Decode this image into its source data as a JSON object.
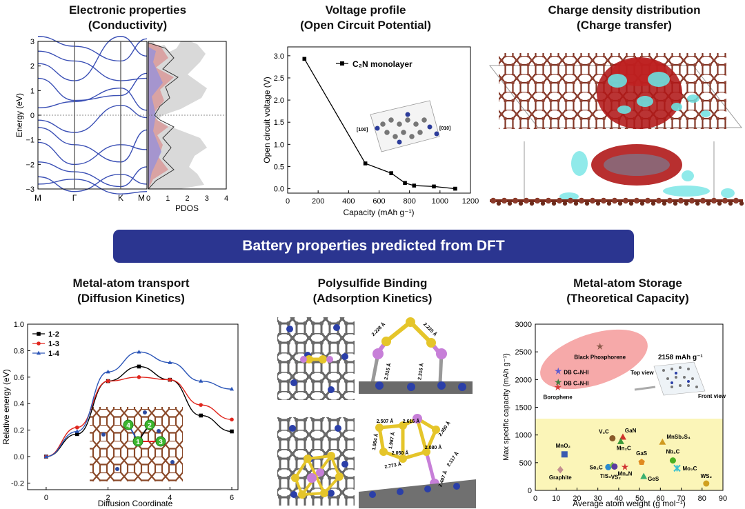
{
  "panels": [
    {
      "title": "Electronic properties",
      "subtitle": "(Conductivity)"
    },
    {
      "title": "Voltage profile",
      "subtitle": "(Open Circuit Potential)"
    },
    {
      "title": "Charge density distribution",
      "subtitle": "(Charge transfer)"
    },
    {
      "title": "Metal-atom transport",
      "subtitle": "(Diffusion Kinetics)"
    },
    {
      "title": "Polysulfide Binding",
      "subtitle": "(Adsorption Kinetics)"
    },
    {
      "title": "Metal-atom Storage",
      "subtitle": "(Theoretical Capacity)"
    }
  ],
  "banner": "Battery properties predicted from DFT",
  "band": {
    "ylabel": "Energy (eV)",
    "kpoints": [
      "M",
      "Γ",
      "K",
      "M"
    ],
    "yticks": [
      "3",
      "2",
      "1",
      "0",
      "−1",
      "−2",
      "−3"
    ],
    "pdos_xlabel": "PDOS",
    "pdos_ticks": [
      "0",
      "1",
      "2",
      "3",
      "4"
    ]
  },
  "voltage": {
    "xlabel": "Capacity (mAh g⁻¹)",
    "ylabel": "Open circuit voltage (V)",
    "legend": "C₂N monolayer",
    "inset_labels": [
      "[100]",
      "[010]"
    ],
    "xticks": [
      "0",
      "200",
      "400",
      "600",
      "800",
      "1000",
      "1200"
    ],
    "yticks": [
      "0.0",
      "0.5",
      "1.0",
      "1.5",
      "2.0",
      "2.5",
      "3.0"
    ]
  },
  "diffusion": {
    "xlabel": "Diffusion Coordinate",
    "ylabel": "Relative energy (eV)",
    "xticks": [
      "0",
      "2",
      "4",
      "6"
    ],
    "yticks": [
      "-0.2",
      "0.0",
      "0.2",
      "0.4",
      "0.6",
      "0.8",
      "1.0"
    ],
    "sites": [
      "1",
      "2",
      "3",
      "4"
    ]
  },
  "polysulfide": {
    "bonds_top": [
      "2.228 Å",
      "2.225 Å",
      "2.315 Å",
      "2.316 Å"
    ],
    "bonds_bottom": [
      "2.507 Å",
      "2.616 Å",
      "2.450 Å",
      "1.984 Å",
      "1.987 Å",
      "2.050 Å",
      "2.080 Å",
      "2.773 Å",
      "2.117 Å",
      "2.407 Å"
    ]
  },
  "storage": {
    "xlabel": "Average atom weight (g mol⁻¹)",
    "ylabel": "Max specific capacity (mAh g⁻¹)",
    "xticks": [
      "0",
      "10",
      "20",
      "30",
      "40",
      "50",
      "60",
      "70",
      "80",
      "90"
    ],
    "yticks": [
      "0",
      "500",
      "1000",
      "1500",
      "2000",
      "2500",
      "3000"
    ],
    "callout": "2158 mAh g⁻¹",
    "top_view": "Top view",
    "front_view": "Front view"
  },
  "chart_data": [
    {
      "type": "line",
      "title": "Voltage profile",
      "xlabel": "Capacity (mAh g⁻¹)",
      "ylabel": "Open circuit voltage (V)",
      "xlim": [
        0,
        1200
      ],
      "ylim": [
        -0.1,
        3.2
      ],
      "series": [
        {
          "name": "C₂N monolayer",
          "color": "#000000",
          "x": [
            110,
            510,
            680,
            770,
            830,
            960,
            1100
          ],
          "values": [
            2.93,
            0.57,
            0.35,
            0.13,
            0.07,
            0.05,
            0.0
          ]
        }
      ]
    },
    {
      "type": "line",
      "title": "Metal-atom transport",
      "xlabel": "Diffusion Coordinate",
      "ylabel": "Relative energy (eV)",
      "xlim": [
        -0.6,
        6.2
      ],
      "ylim": [
        -0.25,
        1.0
      ],
      "series": [
        {
          "name": "1-2",
          "color": "#000000",
          "marker": "square",
          "x": [
            0,
            1,
            2,
            3,
            4,
            5,
            6
          ],
          "values": [
            0.0,
            0.17,
            0.57,
            0.68,
            0.58,
            0.31,
            0.19
          ]
        },
        {
          "name": "1-3",
          "color": "#e0261d",
          "marker": "circle",
          "x": [
            0,
            1,
            2,
            3,
            4,
            5,
            6
          ],
          "values": [
            0.0,
            0.22,
            0.57,
            0.6,
            0.58,
            0.39,
            0.28
          ]
        },
        {
          "name": "1-4",
          "color": "#2c56b8",
          "marker": "triangle",
          "x": [
            0,
            1,
            2,
            3,
            4,
            5,
            6
          ],
          "values": [
            0.0,
            0.19,
            0.64,
            0.79,
            0.71,
            0.57,
            0.51
          ]
        }
      ]
    },
    {
      "type": "scatter",
      "title": "Metal-atom Storage",
      "xlabel": "Average atom weight (g mol⁻¹)",
      "ylabel": "Max specific capacity (mAh g⁻¹)",
      "xlim": [
        0,
        90
      ],
      "ylim": [
        0,
        3000
      ],
      "points": [
        {
          "label": "Black Phosphorene",
          "x": 31,
          "y": 2596,
          "marker": "star",
          "color": "#8b5a4a"
        },
        {
          "label": "DB C₄N-II",
          "x": 11,
          "y": 2150,
          "marker": "star",
          "color": "#5a5ad0"
        },
        {
          "label": "DB C₄N-II",
          "x": 11,
          "y": 1950,
          "marker": "star",
          "color": "#3f7d3f"
        },
        {
          "label": "Borophene",
          "x": 10.8,
          "y": 1860,
          "marker": "star",
          "color": "#d83a3a"
        },
        {
          "label": "V₂C",
          "x": 37,
          "y": 940,
          "marker": "circle",
          "color": "#8a5a2a"
        },
        {
          "label": "GaN",
          "x": 42,
          "y": 960,
          "marker": "triangle",
          "color": "#d0342c"
        },
        {
          "label": "Mn₂C",
          "x": 41,
          "y": 880,
          "marker": "triangle",
          "color": "#3a9a3a"
        },
        {
          "label": "MnSb₂S₄",
          "x": 61,
          "y": 870,
          "marker": "triangle",
          "color": "#d09a20"
        },
        {
          "label": "MnO₂",
          "x": 14,
          "y": 650,
          "marker": "square",
          "color": "#3a5ab0"
        },
        {
          "label": "GaS",
          "x": 51,
          "y": 510,
          "marker": "pentagon",
          "color": "#e08a20"
        },
        {
          "label": "Nb₂C",
          "x": 66,
          "y": 540,
          "marker": "circle",
          "color": "#4ab020"
        },
        {
          "label": "Se₂C",
          "x": 35,
          "y": 420,
          "marker": "circle",
          "color": "#2a8ad0"
        },
        {
          "label": "TiS₃",
          "x": 37,
          "y": 450,
          "marker": "diamond",
          "color": "#7ac04a"
        },
        {
          "label": "VS₂",
          "x": 38,
          "y": 430,
          "marker": "circle",
          "color": "#5a3aa0"
        },
        {
          "label": "Mn₂N",
          "x": 43,
          "y": 420,
          "marker": "star",
          "color": "#d03030"
        },
        {
          "label": "Mo₂C",
          "x": 68,
          "y": 400,
          "marker": "cross",
          "color": "#3ac0d0"
        },
        {
          "label": "GeS",
          "x": 52,
          "y": 250,
          "marker": "triangle",
          "color": "#3ab070"
        },
        {
          "label": "Graphite",
          "x": 12,
          "y": 372,
          "marker": "diamond",
          "color": "#c49090"
        },
        {
          "label": "WS₂",
          "x": 82,
          "y": 124,
          "marker": "circle",
          "color": "#d0a020"
        }
      ]
    }
  ]
}
